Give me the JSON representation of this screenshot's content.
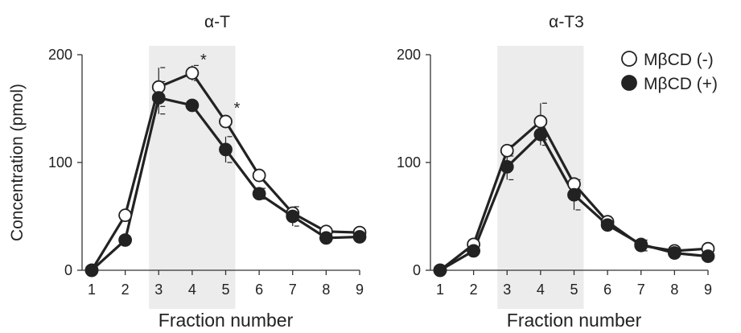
{
  "chart_data": [
    {
      "type": "line",
      "title": "α-T",
      "xlabel": "Fraction number",
      "ylabel": "Concentration (pmol)",
      "x": [
        1,
        2,
        3,
        4,
        5,
        6,
        7,
        8,
        9
      ],
      "xlim": [
        1,
        9
      ],
      "ylim": [
        0,
        200
      ],
      "yticks": [
        0,
        100,
        200
      ],
      "xticks": [
        1,
        2,
        3,
        4,
        5,
        6,
        7,
        8,
        9
      ],
      "shaded_fractions": [
        3,
        5
      ],
      "series": [
        {
          "name": "MβCD (-)",
          "marker": "open",
          "values": [
            0,
            51,
            170,
            183,
            138,
            88,
            53,
            36,
            35
          ],
          "errors": [
            0,
            0,
            18,
            7,
            0,
            0,
            0,
            0,
            0
          ]
        },
        {
          "name": "MβCD (+)",
          "marker": "filled",
          "values": [
            0,
            28,
            160,
            153,
            112,
            71,
            50,
            30,
            31
          ],
          "errors": [
            0,
            0,
            15,
            0,
            12,
            5,
            9,
            0,
            0
          ]
        }
      ],
      "annotations": [
        {
          "x": 4,
          "y": 183,
          "text": "*"
        },
        {
          "x": 5,
          "y": 138,
          "text": "*"
        }
      ]
    },
    {
      "type": "line",
      "title": "α-T3",
      "xlabel": "Fraction number",
      "ylabel": "",
      "x": [
        1,
        2,
        3,
        4,
        5,
        6,
        7,
        8,
        9
      ],
      "xlim": [
        1,
        9
      ],
      "ylim": [
        0,
        200
      ],
      "yticks": [
        0,
        100,
        200
      ],
      "xticks": [
        1,
        2,
        3,
        4,
        5,
        6,
        7,
        8,
        9
      ],
      "shaded_fractions": [
        3,
        5
      ],
      "series": [
        {
          "name": "MβCD (-)",
          "marker": "open",
          "values": [
            0,
            24,
            111,
            138,
            80,
            45,
            23,
            18,
            20
          ],
          "errors": [
            0,
            0,
            5,
            17,
            0,
            0,
            5,
            0,
            0
          ]
        },
        {
          "name": "MβCD (+)",
          "marker": "filled",
          "values": [
            0,
            18,
            96,
            126,
            70,
            42,
            24,
            16,
            13
          ],
          "errors": [
            0,
            0,
            12,
            10,
            14,
            0,
            0,
            0,
            0
          ]
        }
      ],
      "annotations": []
    }
  ],
  "legend": {
    "placement": "top-right",
    "items": [
      {
        "label": "MβCD (-)",
        "marker": "open"
      },
      {
        "label": "MβCD (+)",
        "marker": "filled"
      }
    ]
  },
  "colors": {
    "line": "#222222",
    "marker_fill_open": "#ffffff",
    "marker_fill_filled": "#222222",
    "shade": "#ececec",
    "axis": "#333333",
    "text": "#222222"
  }
}
